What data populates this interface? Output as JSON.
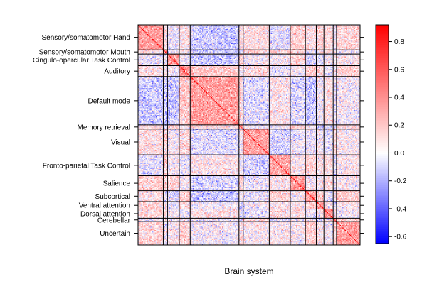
{
  "chart_data": {
    "type": "heatmap",
    "xlabel": "Brain system",
    "ylabel": "",
    "systems": [
      {
        "name": "Sensory/somatomotor Hand",
        "nodes": 30
      },
      {
        "name": "Sensory/somatomotor Mouth",
        "nodes": 5
      },
      {
        "name": "Cingulo-opercular Task Control",
        "nodes": 14
      },
      {
        "name": "Auditory",
        "nodes": 13
      },
      {
        "name": "Default mode",
        "nodes": 58
      },
      {
        "name": "Memory retrieval",
        "nodes": 5
      },
      {
        "name": "Visual",
        "nodes": 31
      },
      {
        "name": "Fronto-parietal Task Control",
        "nodes": 25
      },
      {
        "name": "Salience",
        "nodes": 18
      },
      {
        "name": "Subcortical",
        "nodes": 13
      },
      {
        "name": "Ventral attention",
        "nodes": 9
      },
      {
        "name": "Dorsal attention",
        "nodes": 11
      },
      {
        "name": "Cerebellar",
        "nodes": 4
      },
      {
        "name": "Uncertain",
        "nodes": 28
      }
    ],
    "colorbar": {
      "min": -0.65,
      "max": 0.92,
      "ticks": [
        0.8,
        0.6,
        0.4,
        0.2,
        0.0,
        -0.2,
        -0.4,
        -0.6
      ],
      "tick_labels": [
        "0.8",
        "0.6",
        "0.4",
        "0.2",
        "0.0",
        "-0.2",
        "-0.4",
        "-0.6"
      ],
      "low_color": "#0000ff",
      "mid_color": "#ffffff",
      "high_color": "#ff0000"
    },
    "block_mean_within": 0.35,
    "block_mean_between": 0.05,
    "grid_lines": true
  }
}
